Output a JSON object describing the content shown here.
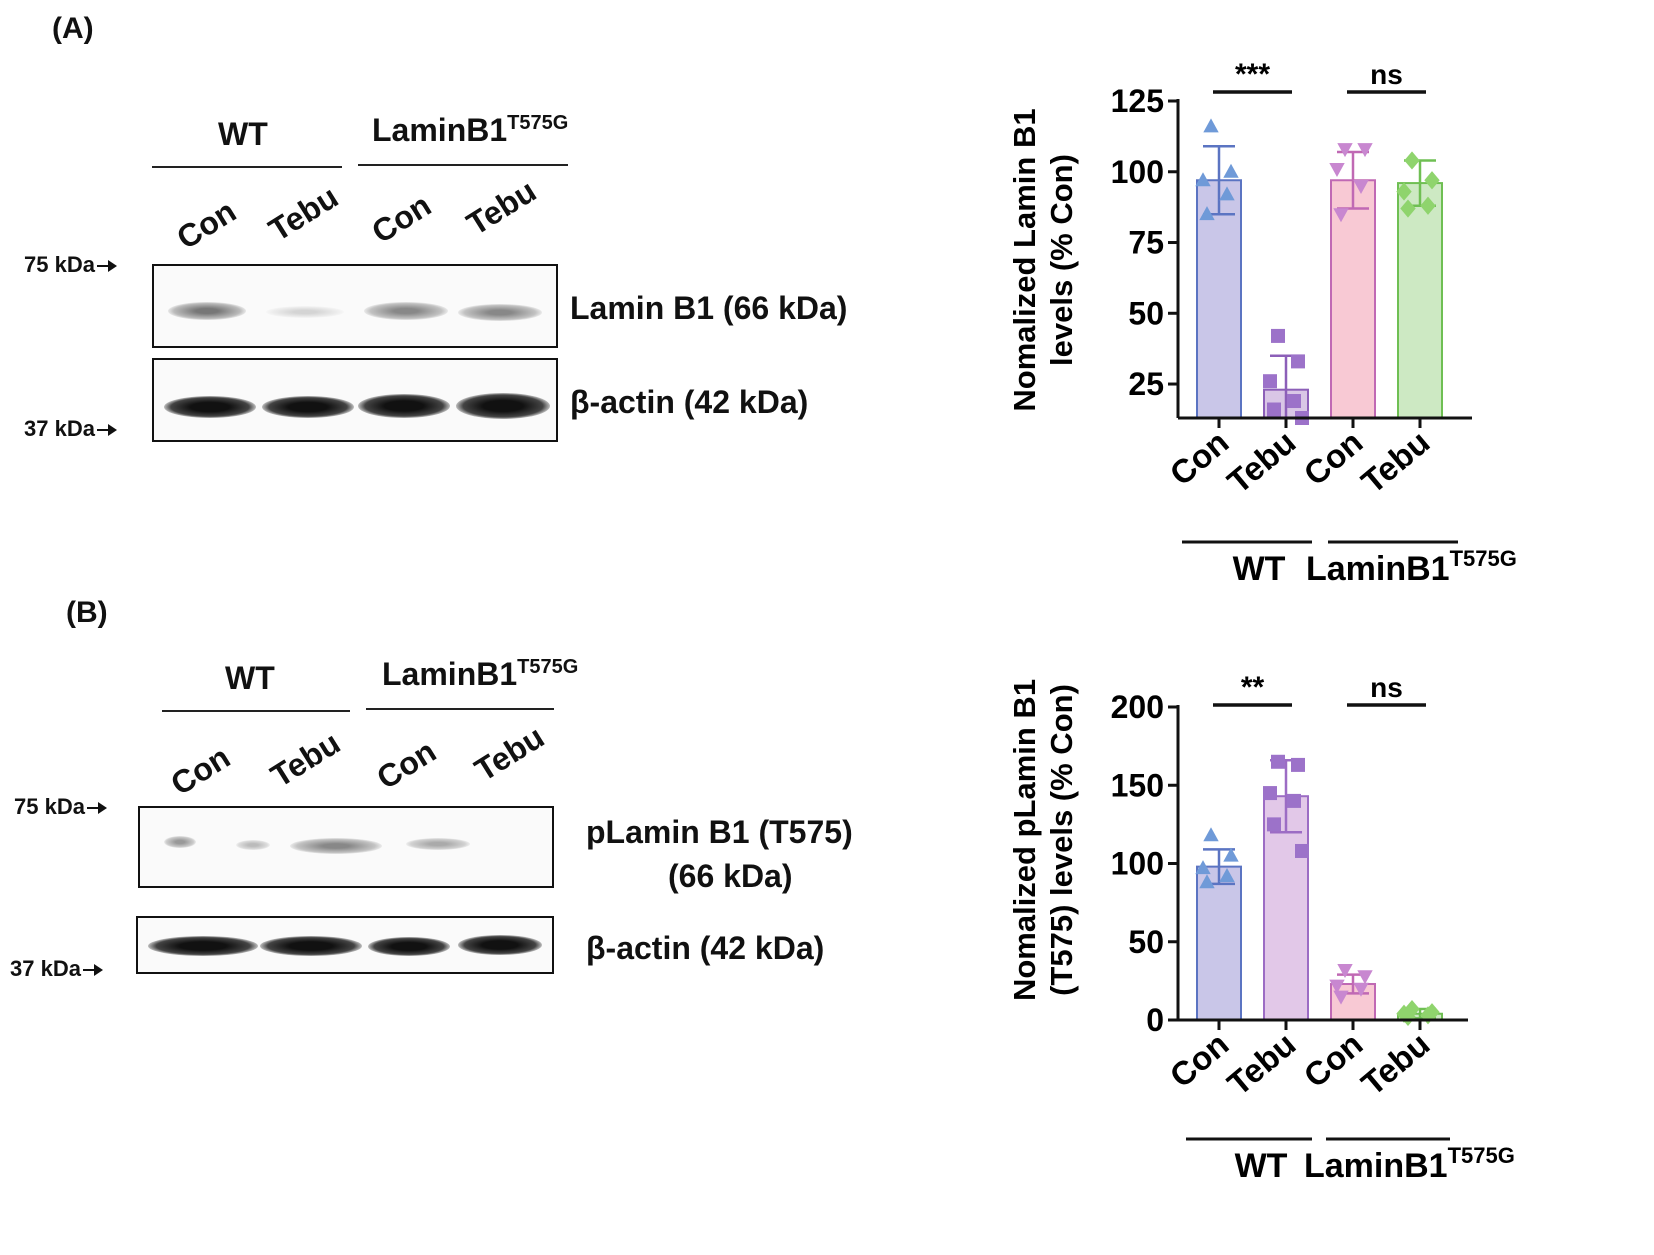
{
  "panel_a": {
    "label": "(A)",
    "groups": {
      "wt": "WT",
      "mutant_base": "LaminB1",
      "mutant_sup": "T575G"
    },
    "lanes": [
      "Con",
      "Tebu",
      "Con",
      "Tebu"
    ],
    "markers": {
      "upper": "75 kDa",
      "lower": "37 kDa"
    },
    "blots": {
      "protein": "Lamin B1 (66 kDa)",
      "loading": "β-actin (42 kDa)"
    }
  },
  "panel_b": {
    "label": "(B)",
    "groups": {
      "wt": "WT",
      "mutant_base": "LaminB1",
      "mutant_sup": "T575G"
    },
    "lanes": [
      "Con",
      "Tebu",
      "Con",
      "Tebu"
    ],
    "markers": {
      "upper": "75 kDa",
      "lower": "37 kDa"
    },
    "blots": {
      "protein_line1": "pLamin B1 (T575)",
      "protein_line2": "(66 kDa)",
      "loading": "β-actin (42 kDa)"
    }
  },
  "chart_data": [
    {
      "type": "bar",
      "id": "A",
      "ylabel_line1": "Nomalized Lamin B1",
      "ylabel_line2": "levels (% Con)",
      "categories": [
        "Con",
        "Tebu",
        "Con",
        "Tebu"
      ],
      "group_labels": [
        "WT",
        "LaminB1"
      ],
      "group_sup": "T575G",
      "ylim": [
        13,
        125
      ],
      "yticks": [
        25,
        50,
        75,
        100,
        125
      ],
      "values": [
        97,
        23,
        97,
        96
      ],
      "sd": [
        12,
        12,
        10,
        8
      ],
      "points": [
        [
          116,
          100,
          97,
          92,
          85
        ],
        [
          42,
          33,
          26,
          19,
          16,
          13
        ],
        [
          108,
          108,
          101,
          95,
          85
        ],
        [
          104,
          97,
          93,
          88,
          87
        ]
      ],
      "colors": [
        "#c9c6e8",
        "#d9c6e6",
        "#f8c9d4",
        "#cde9c3"
      ],
      "edges": [
        "#5b74c2",
        "#8c5fb8",
        "#c069b4",
        "#6fbf53"
      ],
      "marker_colors": [
        "#6f9ad8",
        "#9c72c9",
        "#c887d0",
        "#8fd46d"
      ],
      "markers": [
        "triangle",
        "square",
        "triangle-down",
        "diamond"
      ],
      "significance": [
        {
          "pair": [
            0,
            1
          ],
          "label": "***"
        },
        {
          "pair": [
            2,
            3
          ],
          "label": "ns"
        }
      ]
    },
    {
      "type": "bar",
      "id": "B",
      "ylabel_line1": "Nomalized pLamin B1",
      "ylabel_line2": "(T575) levels (% Con)",
      "categories": [
        "Con",
        "Tebu",
        "Con",
        "Tebu"
      ],
      "group_labels": [
        "WT",
        "LaminB1"
      ],
      "group_sup": "T575G",
      "ylim": [
        0,
        200
      ],
      "yticks": [
        0,
        50,
        100,
        150,
        200
      ],
      "values": [
        98,
        143,
        23,
        4
      ],
      "sd": [
        11,
        23,
        6,
        3
      ],
      "points": [
        [
          118,
          105,
          97,
          92,
          88
        ],
        [
          165,
          163,
          145,
          140,
          125,
          108
        ],
        [
          32,
          28,
          22,
          20,
          15
        ],
        [
          7,
          5,
          4,
          3,
          2
        ]
      ],
      "colors": [
        "#c9c6e8",
        "#e2c8e8",
        "#f8c9d4",
        "#cde9c3"
      ],
      "edges": [
        "#5b74c2",
        "#9c6cc4",
        "#c069b4",
        "#6fbf53"
      ],
      "marker_colors": [
        "#6f9ad8",
        "#9c72c9",
        "#c887d0",
        "#8fd46d"
      ],
      "markers": [
        "triangle",
        "square",
        "triangle-down",
        "diamond"
      ],
      "significance": [
        {
          "pair": [
            0,
            1
          ],
          "label": "**"
        },
        {
          "pair": [
            2,
            3
          ],
          "label": "ns"
        }
      ]
    }
  ]
}
